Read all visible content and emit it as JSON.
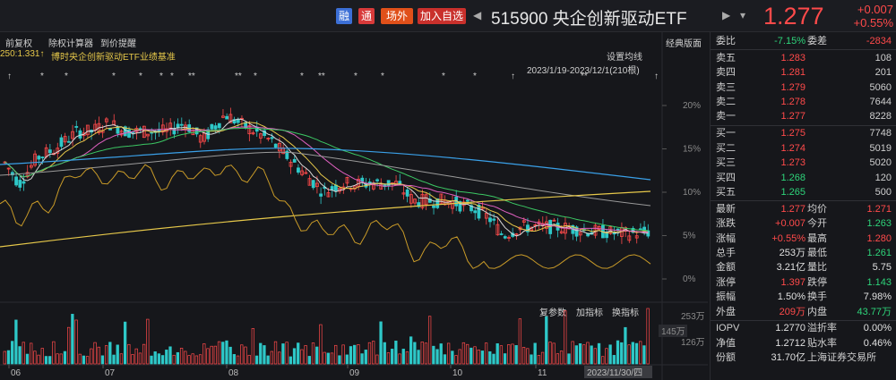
{
  "header": {
    "btn_rong": "融",
    "btn_tong": "通",
    "btn_changwai": "场外",
    "btn_add": "加入自选",
    "prev_arrow": "◀",
    "next_arrow": "▶",
    "menu_arrow": "▾",
    "title": "515900 央企创新驱动ETF",
    "price": "1.277",
    "change": "+0.007",
    "change_pct": "+0.55%"
  },
  "toolbar": {
    "fuquan": "前复权",
    "chuquan": "除权计算器",
    "daojia": "到价提醒",
    "jingdian": "经典版面",
    "ma_info": "250:1.331↑",
    "benchmark": "博时央企创新驱动ETF业绩基准",
    "ma_settings": "设置均线",
    "date_range": "2023/1/19-2023/12/1(210根)",
    "fuquan_params": "复参数",
    "add_indicator": "加指标",
    "change_indicator": "换指标"
  },
  "chart_data": {
    "type": "candlestick",
    "y_axis_ticks": [
      "20%",
      "15%",
      "10%",
      "5%",
      "0%"
    ],
    "volume_ticks": [
      "253万",
      "126万"
    ],
    "volume_marker": "145万",
    "x_axis_ticks": [
      "06",
      "07",
      "08",
      "09",
      "10",
      "11"
    ],
    "cursor_date": "2023/11/30/四"
  },
  "colors": {
    "up": "#ff4a4a",
    "down": "#2ec8c8",
    "ma_white": "#d8d8d8",
    "ma_yellow": "#e6c84a",
    "ma_pink": "#e060c0",
    "ma_green": "#3cc864",
    "ma_blue": "#3aa0e8",
    "ma_gray": "#9a9a9a",
    "benchmark": "#c89a28"
  },
  "panel": {
    "weibi_label": "委比",
    "weibi": "-7.15%",
    "weicha_label": "委差",
    "weicha": "-2834",
    "sell": [
      {
        "label": "卖五",
        "price": "1.283",
        "vol": "108"
      },
      {
        "label": "卖四",
        "price": "1.281",
        "vol": "201"
      },
      {
        "label": "卖三",
        "price": "1.279",
        "vol": "5060"
      },
      {
        "label": "卖二",
        "price": "1.278",
        "vol": "7644"
      },
      {
        "label": "卖一",
        "price": "1.277",
        "vol": "8228"
      }
    ],
    "buy": [
      {
        "label": "买一",
        "price": "1.275",
        "vol": "7748"
      },
      {
        "label": "买二",
        "price": "1.274",
        "vol": "5019"
      },
      {
        "label": "买三",
        "price": "1.273",
        "vol": "5020"
      },
      {
        "label": "买四",
        "price": "1.268",
        "vol": "120"
      },
      {
        "label": "买五",
        "price": "1.265",
        "vol": "500"
      }
    ],
    "stats": [
      {
        "l1": "最新",
        "v1": "1.277",
        "c1": "red",
        "l2": "均价",
        "v2": "1.271",
        "c2": "red"
      },
      {
        "l1": "涨跌",
        "v1": "+0.007",
        "c1": "red",
        "l2": "今开",
        "v2": "1.263",
        "c2": "green"
      },
      {
        "l1": "涨幅",
        "v1": "+0.55%",
        "c1": "red",
        "l2": "最高",
        "v2": "1.280",
        "c2": "red"
      },
      {
        "l1": "总手",
        "v1": "253万",
        "c1": "white",
        "l2": "最低",
        "v2": "1.261",
        "c2": "green"
      },
      {
        "l1": "金额",
        "v1": "3.21亿",
        "c1": "white",
        "l2": "量比",
        "v2": "5.75",
        "c2": "white"
      },
      {
        "l1": "涨停",
        "v1": "1.397",
        "c1": "red",
        "l2": "跌停",
        "v2": "1.143",
        "c2": "green"
      },
      {
        "l1": "振幅",
        "v1": "1.50%",
        "c1": "white",
        "l2": "换手",
        "v2": "7.98%",
        "c2": "white"
      },
      {
        "l1": "外盘",
        "v1": "209万",
        "c1": "red",
        "l2": "内盘",
        "v2": "43.77万",
        "c2": "green"
      }
    ],
    "extra": [
      {
        "l1": "IOPV",
        "v1": "1.2770",
        "l2": "溢折率",
        "v2": "0.00%"
      },
      {
        "l1": "净值",
        "v1": "1.2712",
        "l2": "贴水率",
        "v2": "0.46%"
      },
      {
        "l1": "份额",
        "v1": "31.70亿",
        "l2": "上海证券交易所",
        "v2": ""
      }
    ]
  }
}
